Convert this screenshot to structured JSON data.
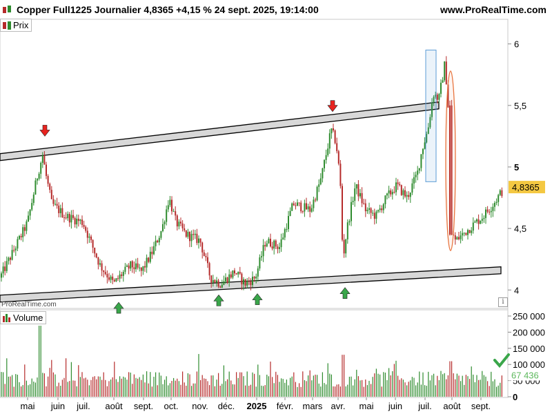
{
  "header": {
    "title": "Copper Full1225 Journalier 4,8365 +4,15 % 24 sept. 2025, 19:14:00",
    "site": "www.ProRealTime.com",
    "icon": "candlestick-chart-icon"
  },
  "price_panel": {
    "label": "Prix",
    "watermark": "ProRealTime.com",
    "current_value_label": "4,8365",
    "current_value_color": "#f4c842",
    "info_icon": "info-icon"
  },
  "volume_panel": {
    "label": "Volume",
    "current_value_label": "67 436",
    "current_value_color": "#5cb85c",
    "check_icon": "checkmark-icon"
  },
  "colors": {
    "up": "#2e8b2e",
    "down": "#b52a2a",
    "channel_fill": "#d8d8d8",
    "channel_border": "#000000",
    "arrow_down": "#e8231f",
    "arrow_up": "#3aa64a",
    "highlight_box": "#5b9bd5",
    "highlight_ellipse": "#e8733c"
  },
  "chart_data": [
    {
      "type": "candlestick",
      "title": "Copper Full1225 Journalier",
      "x_tick_labels": [
        "mai",
        "juin",
        "juil.",
        "août",
        "sept.",
        "oct.",
        "nov.",
        "déc.",
        "2025",
        "févr.",
        "mars",
        "avr.",
        "mai",
        "juin",
        "juil.",
        "août",
        "sept."
      ],
      "y_tick_labels": [
        "6",
        "5,5",
        "5",
        "4,5",
        "4"
      ],
      "y_ticks": [
        6,
        5.5,
        5,
        4.5,
        4
      ],
      "ylim": [
        3.85,
        6.2
      ],
      "last_value": 4.8365,
      "anchors": [
        {
          "x": 0,
          "y": 4.1
        },
        {
          "x": 18,
          "y": 4.3
        },
        {
          "x": 40,
          "y": 4.55
        },
        {
          "x": 55,
          "y": 4.95
        },
        {
          "x": 62,
          "y": 5.1
        },
        {
          "x": 66,
          "y": 4.95
        },
        {
          "x": 75,
          "y": 4.7
        },
        {
          "x": 95,
          "y": 4.6
        },
        {
          "x": 120,
          "y": 4.55
        },
        {
          "x": 145,
          "y": 4.2
        },
        {
          "x": 165,
          "y": 4.05
        },
        {
          "x": 175,
          "y": 4.12
        },
        {
          "x": 190,
          "y": 4.2
        },
        {
          "x": 205,
          "y": 4.15
        },
        {
          "x": 220,
          "y": 4.3
        },
        {
          "x": 235,
          "y": 4.5
        },
        {
          "x": 245,
          "y": 4.75
        },
        {
          "x": 255,
          "y": 4.55
        },
        {
          "x": 270,
          "y": 4.45
        },
        {
          "x": 290,
          "y": 4.4
        },
        {
          "x": 305,
          "y": 4.1
        },
        {
          "x": 320,
          "y": 4.05
        },
        {
          "x": 340,
          "y": 4.15
        },
        {
          "x": 355,
          "y": 4.05
        },
        {
          "x": 370,
          "y": 4.1
        },
        {
          "x": 385,
          "y": 4.4
        },
        {
          "x": 405,
          "y": 4.35
        },
        {
          "x": 425,
          "y": 4.7
        },
        {
          "x": 450,
          "y": 4.65
        },
        {
          "x": 465,
          "y": 4.9
        },
        {
          "x": 480,
          "y": 5.3
        },
        {
          "x": 487,
          "y": 5.2
        },
        {
          "x": 493,
          "y": 4.9
        },
        {
          "x": 497,
          "y": 4.25
        },
        {
          "x": 503,
          "y": 4.5
        },
        {
          "x": 515,
          "y": 4.85
        },
        {
          "x": 530,
          "y": 4.65
        },
        {
          "x": 545,
          "y": 4.6
        },
        {
          "x": 560,
          "y": 4.75
        },
        {
          "x": 575,
          "y": 4.85
        },
        {
          "x": 590,
          "y": 4.75
        },
        {
          "x": 605,
          "y": 4.95
        },
        {
          "x": 612,
          "y": 5.15
        },
        {
          "x": 620,
          "y": 5.3
        },
        {
          "x": 628,
          "y": 5.6
        },
        {
          "x": 636,
          "y": 5.55
        },
        {
          "x": 645,
          "y": 5.85
        },
        {
          "x": 650,
          "y": 5.45
        },
        {
          "x": 654,
          "y": 4.5
        },
        {
          "x": 660,
          "y": 4.4
        },
        {
          "x": 680,
          "y": 4.5
        },
        {
          "x": 700,
          "y": 4.6
        },
        {
          "x": 715,
          "y": 4.7
        },
        {
          "x": 727,
          "y": 4.8
        }
      ],
      "channel_upper": {
        "start": 5.08,
        "end": 5.5
      },
      "channel_lower": {
        "start": 3.93,
        "end": 4.16
      },
      "resistance_arrows_down": [
        5.25,
        5.45
      ],
      "support_arrows_up": [
        3.9,
        3.96,
        3.97,
        4.02
      ]
    },
    {
      "type": "bar",
      "title": "Volume",
      "y_tick_labels": [
        "250 000",
        "200 000",
        "150 000",
        "100 000",
        "50 000",
        "0"
      ],
      "y_ticks": [
        250000,
        200000,
        150000,
        100000,
        50000,
        0
      ],
      "ylim": [
        0,
        250000
      ],
      "last_value": 67436
    }
  ]
}
